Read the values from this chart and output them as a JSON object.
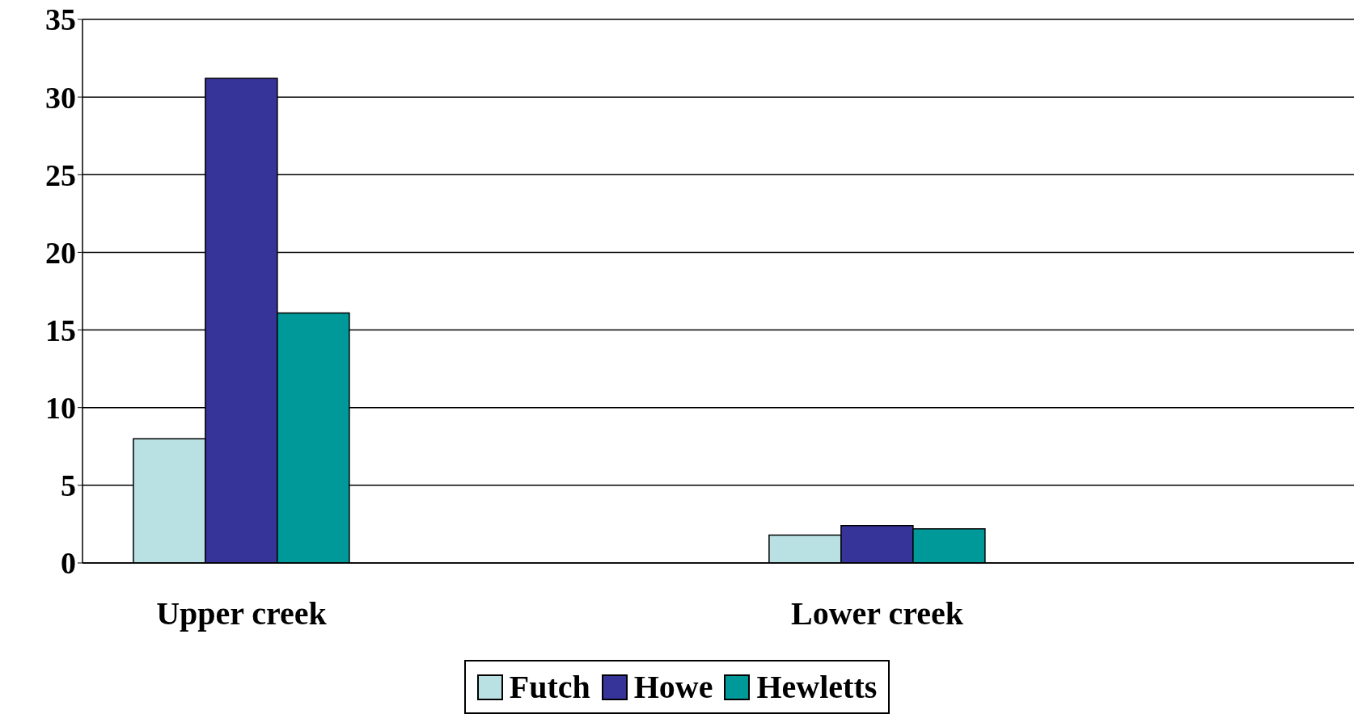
{
  "chart_data": {
    "type": "bar",
    "categories": [
      "Upper creek",
      null,
      "Lower creek",
      null
    ],
    "series": [
      {
        "name": "Futch",
        "color": "#b9e0e3",
        "values": [
          8,
          null,
          1.8,
          null
        ]
      },
      {
        "name": "Howe",
        "color": "#363399",
        "values": [
          31.2,
          null,
          2.4,
          null
        ]
      },
      {
        "name": "Hewletts",
        "color": "#009999",
        "values": [
          16.1,
          null,
          2.2,
          null
        ]
      }
    ],
    "ylim": [
      0,
      35
    ],
    "yticks": [
      0,
      5,
      10,
      15,
      20,
      25,
      30,
      35
    ],
    "grid": "y",
    "legend": "bottom"
  }
}
